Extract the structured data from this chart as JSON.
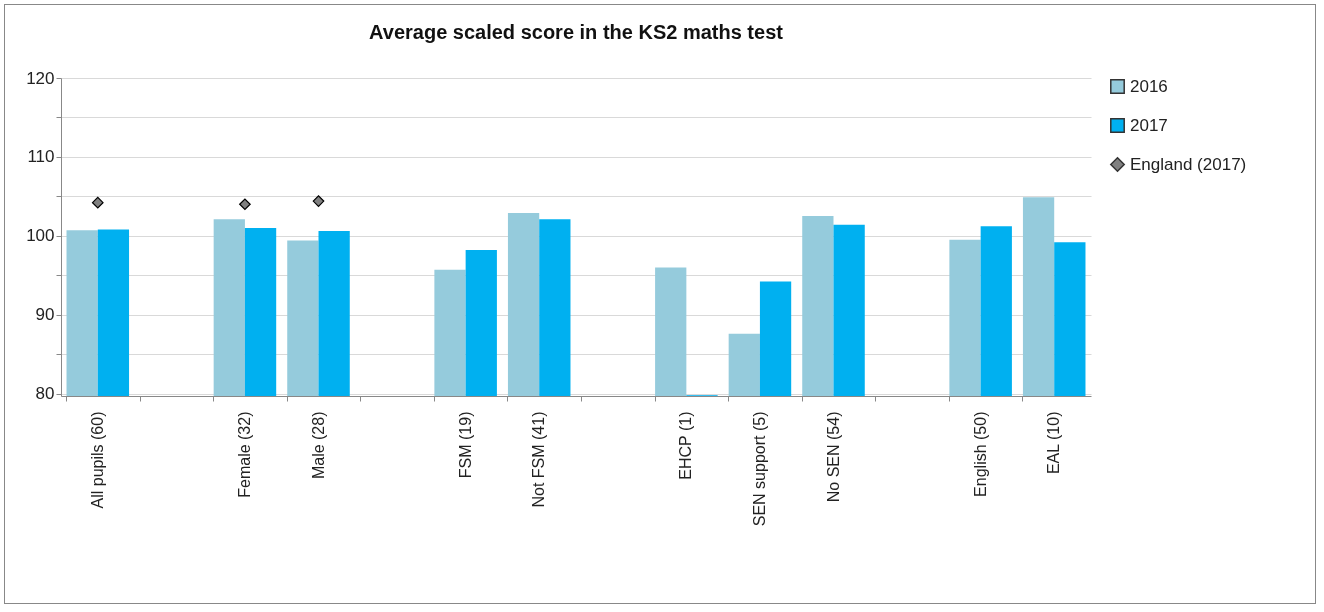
{
  "chart_data": {
    "type": "bar",
    "title": "Average scaled score in the KS2 maths test",
    "categories": [
      "All pupils (60)",
      null,
      "Female (32)",
      "Male (28)",
      null,
      "FSM (19)",
      "Not FSM (41)",
      null,
      "EHCP (1)",
      "SEN support (5)",
      "No SEN (54)",
      null,
      "English (50)",
      "EAL (10)"
    ],
    "series": [
      {
        "name": "2016",
        "color": "#95cbdc",
        "values": [
          100.7,
          null,
          102.1,
          99.4,
          null,
          95.7,
          102.9,
          null,
          96.0,
          87.6,
          102.5,
          null,
          99.5,
          104.9
        ]
      },
      {
        "name": "2017",
        "color": "#00b0f0",
        "values": [
          100.8,
          null,
          101.0,
          100.6,
          null,
          98.2,
          102.1,
          null,
          79.8,
          94.2,
          101.4,
          null,
          101.2,
          99.2
        ]
      },
      {
        "name": "England (2017)",
        "type": "scatter",
        "color": "#808080",
        "marker": "diamond",
        "x": [
          "All pupils (60)",
          "Female (32)",
          "Male (28)"
        ],
        "values": [
          104.2,
          104.0,
          104.4
        ]
      }
    ],
    "ylim": [
      79.7,
      120
    ],
    "yticks": [
      80,
      {
        "value": 85,
        "label": null
      },
      90,
      {
        "value": 95,
        "label": null
      },
      100,
      {
        "value": 105,
        "label": null
      },
      110,
      {
        "value": 115,
        "label": null
      },
      120
    ],
    "grid": true,
    "legend": "right"
  }
}
